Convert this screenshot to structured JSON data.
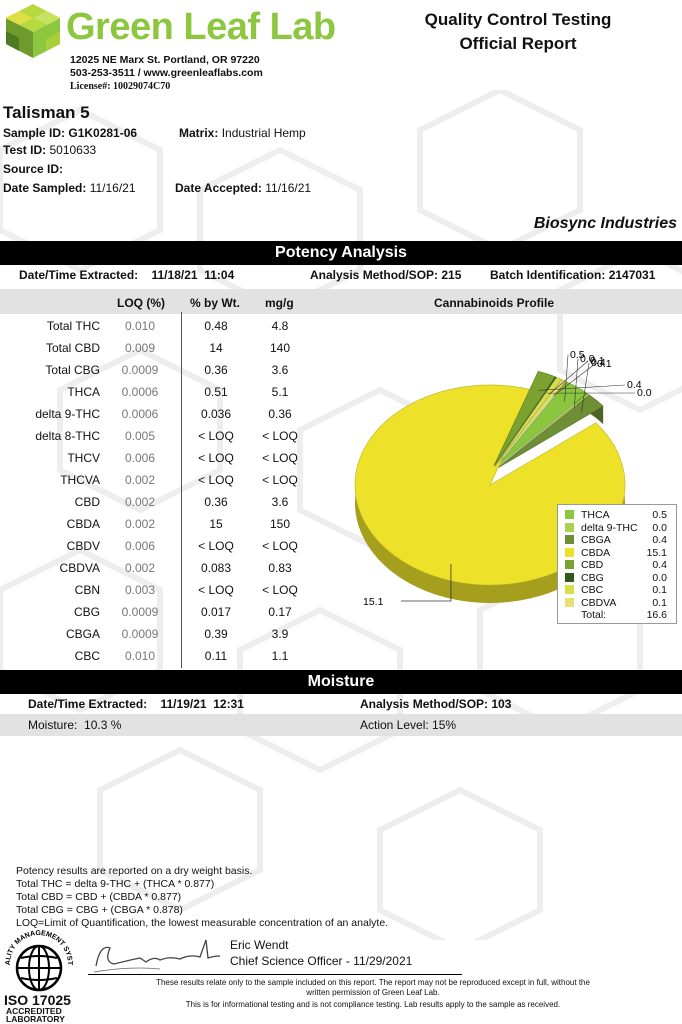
{
  "header": {
    "brand": "Green Leaf Lab",
    "address": "12025 NE Marx St. Portland, OR 97220",
    "contact": "503-253-3511 / www.greenleaflabs.com",
    "license": "License#: 10029074C70",
    "title_line1": "Quality Control Testing",
    "title_line2": "Official Report"
  },
  "sample": {
    "name": "Talisman 5",
    "sample_id_label": "Sample ID:",
    "sample_id": "G1K0281-06",
    "matrix_label": "Matrix:",
    "matrix": "Industrial Hemp",
    "test_id_label": "Test ID:",
    "test_id": "5010633",
    "source_id_label": "Source ID:",
    "date_sampled_label": "Date Sampled:",
    "date_sampled": "11/16/21",
    "date_accepted_label": "Date Accepted:",
    "date_accepted": "11/16/21",
    "client": "Biosync Industries"
  },
  "potency": {
    "title": "Potency Analysis",
    "extracted_label": "Date/Time Extracted:",
    "extracted": "11/18/21  11:04",
    "method_label": "Analysis Method/SOP:",
    "method": "215",
    "batch_label": "Batch Identification:",
    "batch": "2147031",
    "col_loq": "LOQ (%)",
    "col_pct": "% by Wt.",
    "col_mg": "mg/g",
    "rows": [
      {
        "name": "Total THC",
        "loq": "0.010",
        "pct": "0.48",
        "mg": "4.8"
      },
      {
        "name": "Total CBD",
        "loq": "0.009",
        "pct": "14",
        "mg": "140"
      },
      {
        "name": "Total CBG",
        "loq": "0.0009",
        "pct": "0.36",
        "mg": "3.6"
      },
      {
        "name": "THCA",
        "loq": "0.0006",
        "pct": "0.51",
        "mg": "5.1"
      },
      {
        "name": "delta 9-THC",
        "loq": "0.0006",
        "pct": "0.036",
        "mg": "0.36"
      },
      {
        "name": "delta 8-THC",
        "loq": "0.005",
        "pct": "< LOQ",
        "mg": "< LOQ"
      },
      {
        "name": "THCV",
        "loq": "0.006",
        "pct": "< LOQ",
        "mg": "< LOQ"
      },
      {
        "name": "THCVA",
        "loq": "0.002",
        "pct": "< LOQ",
        "mg": "< LOQ"
      },
      {
        "name": "CBD",
        "loq": "0.002",
        "pct": "0.36",
        "mg": "3.6"
      },
      {
        "name": "CBDA",
        "loq": "0.002",
        "pct": "15",
        "mg": "150"
      },
      {
        "name": "CBDV",
        "loq": "0.006",
        "pct": "< LOQ",
        "mg": "< LOQ"
      },
      {
        "name": "CBDVA",
        "loq": "0.002",
        "pct": "0.083",
        "mg": "0.83"
      },
      {
        "name": "CBN",
        "loq": "0.003",
        "pct": "< LOQ",
        "mg": "< LOQ"
      },
      {
        "name": "CBG",
        "loq": "0.0009",
        "pct": "0.017",
        "mg": "0.17"
      },
      {
        "name": "CBGA",
        "loq": "0.0009",
        "pct": "0.39",
        "mg": "3.9"
      },
      {
        "name": "CBC",
        "loq": "0.010",
        "pct": "0.11",
        "mg": "1.1"
      }
    ]
  },
  "chart_data": {
    "type": "pie",
    "title": "Cannabinoids Profile",
    "legend_position": "bottom-right",
    "total_label": "Total:",
    "total": "16.6",
    "slices": [
      {
        "name": "THCA",
        "label": "0.5",
        "value": 0.5,
        "color": "#8cc63f"
      },
      {
        "name": "delta 9-THC",
        "label": "0.0",
        "value": 0.036,
        "color": "#a9d24b"
      },
      {
        "name": "CBGA",
        "label": "0.4",
        "value": 0.39,
        "color": "#6e8f35"
      },
      {
        "name": "CBDA",
        "label": "15.1",
        "value": 15.1,
        "color": "#ede12a"
      },
      {
        "name": "CBD",
        "label": "0.4",
        "value": 0.36,
        "color": "#7aa22f"
      },
      {
        "name": "CBG",
        "label": "0.0",
        "value": 0.017,
        "color": "#2f5b1a"
      },
      {
        "name": "CBC",
        "label": "0.1",
        "value": 0.11,
        "color": "#d4e04a"
      },
      {
        "name": "CBDVA",
        "label": "0.1",
        "value": 0.083,
        "color": "#e8e070"
      }
    ]
  },
  "moisture": {
    "title": "Moisture",
    "extracted_label": "Date/Time Extracted:",
    "extracted": "11/19/21  12:31",
    "method_label": "Analysis Method/SOP:",
    "method": "103",
    "moisture_text": "Moisture:  10.3 %",
    "action_level": "Action Level: 15%"
  },
  "notes": {
    "line1": "Potency results are reported on a dry weight basis.",
    "line2": "Total THC =  delta 9-THC + (THCA * 0.877)",
    "line3": "Total CBD =  CBD + (CBDA * 0.877)",
    "line4": "Total CBG = CBG + (CBGA * 0.878)",
    "line5": "LOQ=Limit of Quantification, the lowest measurable concentration of an analyte."
  },
  "signature": {
    "name": "Eric Wendt",
    "title": "Chief Science Officer - 11/29/2021"
  },
  "seal": {
    "ring_text": "QUALITY MANAGEMENT SYSTEM",
    "iso": "ISO 17025",
    "acc1": "ACCREDITED",
    "acc2": "LABORATORY"
  },
  "disclaimer": {
    "line1": "These results relate only to the sample included on this report. The report may not be reproduced except in full, without the",
    "line2": "written permission of Green Leaf Lab.",
    "line3": "This is for informational testing and is not compliance testing. Lab results apply to the sample as received."
  },
  "colors": {
    "brand_green": "#8dc63f",
    "header_bar": "#000000",
    "row_gray": "#e2e2e2"
  }
}
